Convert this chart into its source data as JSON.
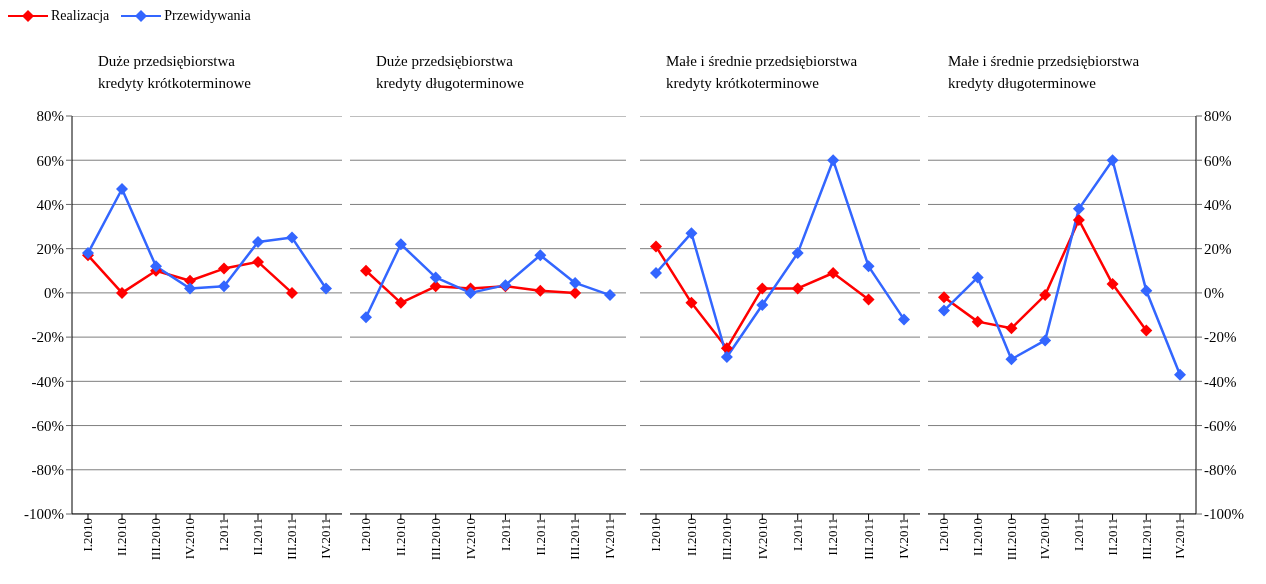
{
  "chart_data": [
    {
      "type": "line",
      "title": "Duże przedsiębiorstwa\nkredyty krótkoterminowe",
      "categories": [
        "I.2010",
        "II.2010",
        "III.2010",
        "IV.2010",
        "I.2011",
        "II.2011",
        "III.2011",
        "IV.2011"
      ],
      "series": [
        {
          "name": "Realizacja",
          "color": "#ff0000",
          "values": [
            17,
            0,
            10,
            5.5,
            11,
            14,
            0,
            null
          ]
        },
        {
          "name": "Przewidywania",
          "color": "#3366ff",
          "values": [
            18,
            47,
            12,
            2,
            3,
            23,
            25,
            2
          ]
        }
      ],
      "ylim": [
        -100,
        80
      ],
      "yticks": [
        {
          "value": -100,
          "label": "-100%"
        },
        {
          "value": -80,
          "label": "-80%"
        },
        {
          "value": -60,
          "label": "-60%"
        },
        {
          "value": -40,
          "label": "-40%"
        },
        {
          "value": -20,
          "label": "-20%"
        },
        {
          "value": 0,
          "label": "0%"
        },
        {
          "value": 20,
          "label": "20%"
        },
        {
          "value": 40,
          "label": "40%"
        },
        {
          "value": 60,
          "label": "60%"
        },
        {
          "value": 80,
          "label": "80%"
        }
      ],
      "grid": "y",
      "legend": "top left",
      "marker": "diamond",
      "line_style": "solid"
    },
    {
      "type": "line",
      "title": "Duże przedsiębiorstwa\nkredyty długoterminowe",
      "categories": [
        "I.2010",
        "II.2010",
        "III.2010",
        "IV.2010",
        "I.2011",
        "II.2011",
        "III.2011",
        "IV.2011"
      ],
      "series": [
        {
          "color": "#ff0000",
          "values": [
            10,
            -4.5,
            3,
            2,
            3,
            1,
            0,
            null
          ]
        },
        {
          "color": "#3366ff",
          "values": [
            -11,
            22,
            7,
            0,
            3.5,
            17,
            4.5,
            -1
          ]
        }
      ],
      "ylim": [
        -100,
        80
      ],
      "yticks": [
        -100,
        -80,
        -60,
        -40,
        -20,
        0,
        20,
        40,
        60,
        80
      ],
      "tick_labels": "x",
      "grid": "y",
      "marker": "diamond",
      "line_style": "solid"
    },
    {
      "type": "line",
      "title": "Małe i średnie  przedsiębiorstwa\nkredyty krótkoterminowe",
      "categories": [
        "I.2010",
        "II.2010",
        "III.2010",
        "IV.2010",
        "I.2011",
        "II.2011",
        "III.2011",
        "IV.2011"
      ],
      "series": [
        {
          "color": "#ff0000",
          "values": [
            21,
            -4.5,
            -25,
            2,
            2,
            9,
            -3,
            null
          ]
        },
        {
          "color": "#3366ff",
          "values": [
            9,
            27,
            -29,
            -5.5,
            18,
            60,
            12,
            -12
          ]
        }
      ],
      "ylim": [
        -100,
        80
      ],
      "yticks": [
        -100,
        -80,
        -60,
        -40,
        -20,
        0,
        20,
        40,
        60,
        80
      ],
      "tick_labels": "x",
      "grid": "y",
      "marker": "diamond",
      "line_style": "solid"
    },
    {
      "type": "line",
      "title": "Małe i średnie  przedsiębiorstwa\nkredyty długoterminowe",
      "categories": [
        "I.2010",
        "II.2010",
        "III.2010",
        "IV.2010",
        "I.2011",
        "II.2011",
        "III.2011",
        "IV.2011"
      ],
      "series": [
        {
          "color": "#ff0000",
          "values": [
            -2,
            -13,
            -16,
            -1,
            33,
            4,
            -17,
            null
          ],
          "axis": "y2"
        },
        {
          "color": "#3366ff",
          "values": [
            -8,
            7,
            -30,
            -21.5,
            38,
            60,
            1,
            -37
          ],
          "axis": "y2"
        }
      ],
      "y2lim": [
        -100,
        80
      ],
      "y2ticks": [
        {
          "value": -100,
          "label": "-100%"
        },
        {
          "value": -80,
          "label": "-80%"
        },
        {
          "value": -60,
          "label": "-60%"
        },
        {
          "value": -40,
          "label": "-40%"
        },
        {
          "value": -20,
          "label": "-20%"
        },
        {
          "value": 0,
          "label": "0%"
        },
        {
          "value": 20,
          "label": "20%"
        },
        {
          "value": 40,
          "label": "40%"
        },
        {
          "value": 60,
          "label": "60%"
        },
        {
          "value": 80,
          "label": "80%"
        }
      ],
      "grid": "y",
      "marker": "diamond",
      "line_style": "solid"
    }
  ]
}
